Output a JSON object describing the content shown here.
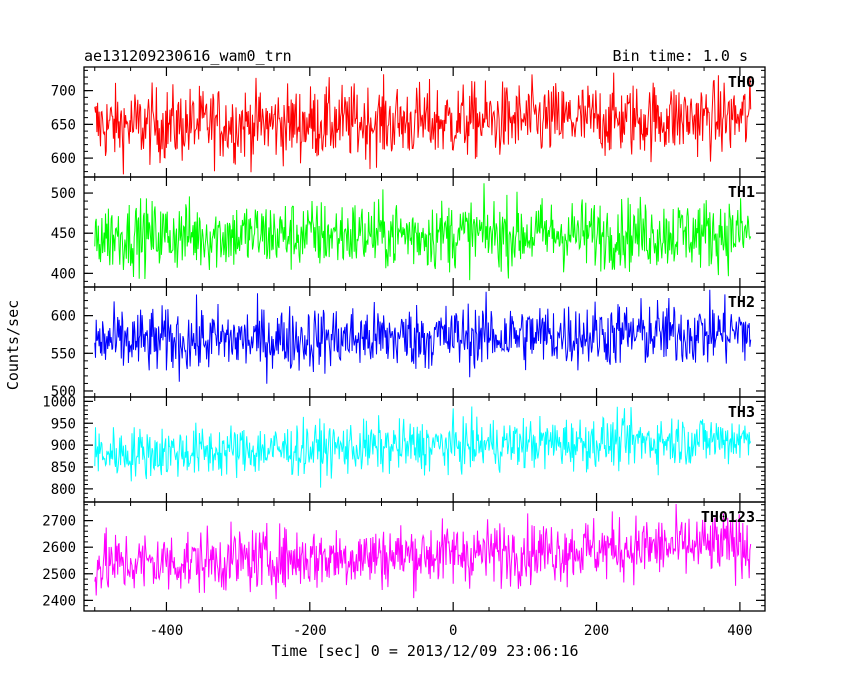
{
  "title_left": "ae131209230616_wam0_trn",
  "title_right": "Bin time: 1.0 s",
  "ylabel": "Counts/sec",
  "xlabel": "Time [sec] 0 = 2013/12/09 23:06:16",
  "chart_data": [
    {
      "type": "line",
      "name": "TH0",
      "color": "#ff0000",
      "x_range": [
        -500,
        415
      ],
      "ylim": [
        572,
        735
      ],
      "yticks": [
        600,
        650,
        700
      ],
      "mean_start": 648,
      "mean_end": 660,
      "noise": 28,
      "xlim": [
        -515,
        435
      ],
      "xticks": [
        -400,
        -200,
        0,
        200,
        400
      ]
    },
    {
      "type": "line",
      "name": "TH1",
      "color": "#00ff00",
      "x_range": [
        -500,
        415
      ],
      "ylim": [
        383,
        520
      ],
      "yticks": [
        400,
        450,
        500
      ],
      "mean_start": 447,
      "mean_end": 450,
      "noise": 22,
      "xlim": [
        -515,
        435
      ],
      "xticks": [
        -400,
        -200,
        0,
        200,
        400
      ]
    },
    {
      "type": "line",
      "name": "TH2",
      "color": "#0000ff",
      "x_range": [
        -500,
        415
      ],
      "ylim": [
        492,
        638
      ],
      "yticks": [
        500,
        550,
        600
      ],
      "mean_start": 565,
      "mean_end": 578,
      "noise": 22,
      "xlim": [
        -515,
        435
      ],
      "xticks": [
        -400,
        -200,
        0,
        200,
        400
      ]
    },
    {
      "type": "line",
      "name": "TH3",
      "color": "#00ffff",
      "x_range": [
        -500,
        415
      ],
      "ylim": [
        770,
        1010
      ],
      "yticks": [
        800,
        850,
        900,
        950,
        1000
      ],
      "mean_start": 880,
      "mean_end": 915,
      "noise": 30,
      "xlim": [
        -515,
        435
      ],
      "xticks": [
        -400,
        -200,
        0,
        200,
        400
      ]
    },
    {
      "type": "line",
      "name": "TH0123",
      "color": "#ff00ff",
      "x_range": [
        -500,
        415
      ],
      "ylim": [
        2360,
        2770
      ],
      "yticks": [
        2400,
        2500,
        2600,
        2700
      ],
      "mean_start": 2535,
      "mean_end": 2610,
      "noise": 60,
      "xlim": [
        -515,
        435
      ],
      "xticks": [
        -400,
        -200,
        0,
        200,
        400
      ]
    }
  ]
}
